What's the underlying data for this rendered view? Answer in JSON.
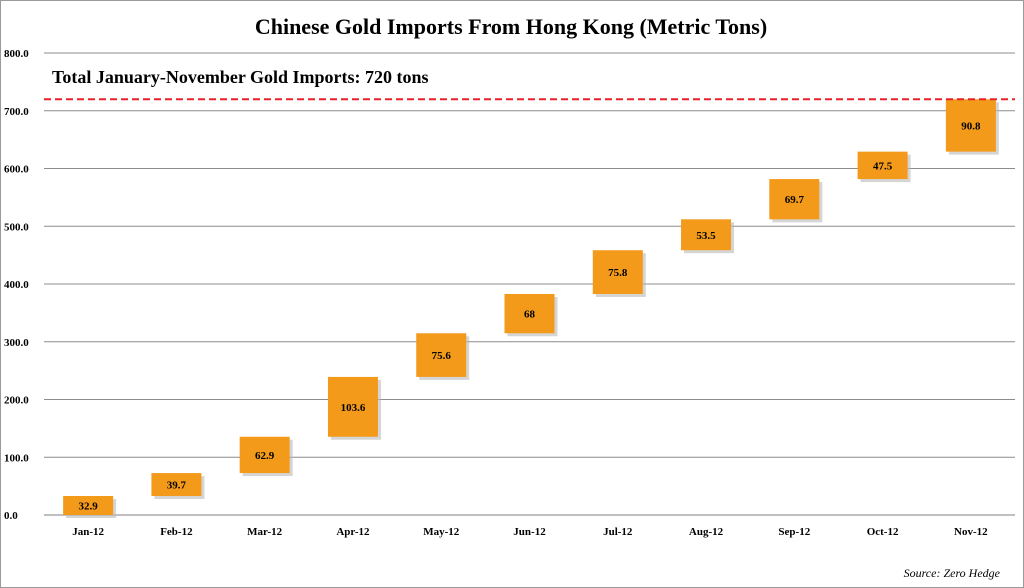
{
  "chart_data": {
    "type": "bar",
    "subtype": "waterfall",
    "title": "Chinese Gold Imports From Hong Kong (Metric Tons)",
    "xlabel": "",
    "ylabel": "",
    "categories": [
      "Jan-12",
      "Feb-12",
      "Mar-12",
      "Apr-12",
      "May-12",
      "Jun-12",
      "Jul-12",
      "Aug-12",
      "Sep-12",
      "Oct-12",
      "Nov-12"
    ],
    "values": [
      32.9,
      39.7,
      62.9,
      103.6,
      75.6,
      68,
      75.8,
      53.5,
      69.7,
      47.5,
      90.8
    ],
    "value_labels": [
      "32.9",
      "39.7",
      "62.9",
      "103.6",
      "75.6",
      "68",
      "75.8",
      "53.5",
      "69.7",
      "47.5",
      "90.8"
    ],
    "ylim": [
      0,
      800
    ],
    "yticks": [
      0,
      100,
      200,
      300,
      400,
      500,
      600,
      700,
      800
    ],
    "ytick_labels": [
      "0.0",
      "100.0",
      "200.0",
      "300.0",
      "400.0",
      "500.0",
      "600.0",
      "700.0",
      "800.0"
    ],
    "grid": true,
    "legend": "none",
    "total_line": {
      "value": 720,
      "label": "Total January-November Gold Imports: 720 tons",
      "color": "#e8202a"
    },
    "bar_color": "#f39a1b",
    "source": "Source: Zero Hedge"
  }
}
